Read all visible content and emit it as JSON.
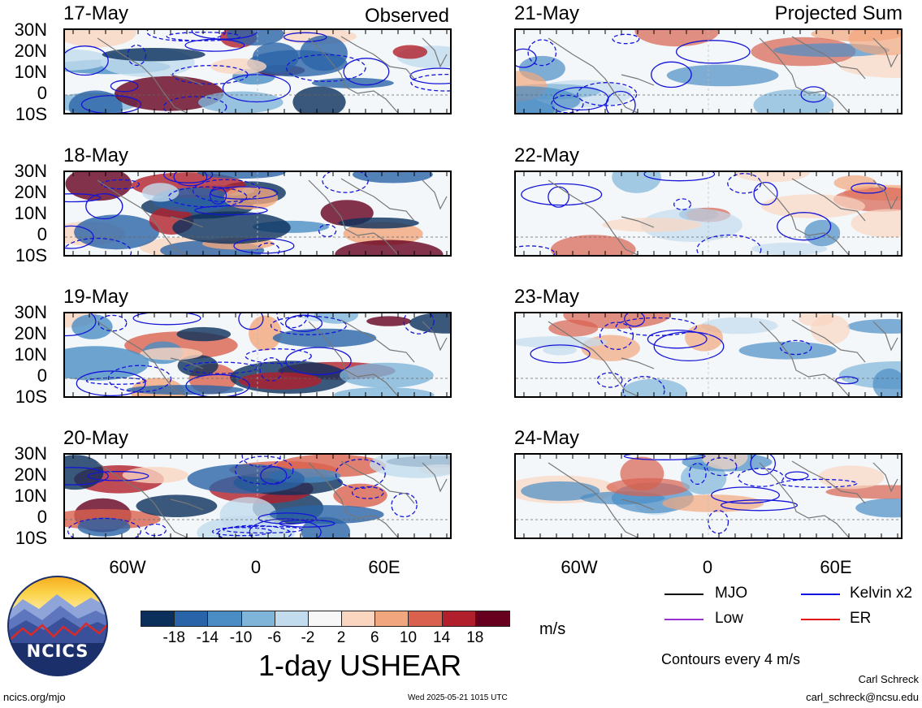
{
  "observed_label": "Observed",
  "projected_label": "Projected Sum",
  "observed_panels": [
    "17-May",
    "18-May",
    "19-May",
    "20-May"
  ],
  "projected_panels": [
    "21-May",
    "22-May",
    "23-May",
    "24-May"
  ],
  "lat_labels": [
    "30N",
    "20N",
    "10N",
    "0",
    "10S"
  ],
  "lon_labels": [
    "60W",
    "0",
    "60E"
  ],
  "colorbar": {
    "unit": "m/s",
    "ticks": [
      "-18",
      "-14",
      "-10",
      "-6",
      "-2",
      "2",
      "6",
      "10",
      "14",
      "18"
    ],
    "colors": [
      "#0b2f5b",
      "#2a64a8",
      "#4a8dc4",
      "#7fb5d9",
      "#c3dced",
      "#f7f7f7",
      "#fad6c1",
      "#f2a67d",
      "#d9614e",
      "#b21f2c",
      "#67001f"
    ]
  },
  "title": "1-day USHEAR",
  "legend": {
    "items": [
      {
        "label": "MJO",
        "color": "#000000"
      },
      {
        "label": "Kelvin x2",
        "color": "#1010e0"
      },
      {
        "label": "Low",
        "color": "#9b30d0"
      },
      {
        "label": "ER",
        "color": "#e01010"
      }
    ],
    "note": "Contours every 4 m/s"
  },
  "logo_text": "NCICS",
  "footer": {
    "left": "ncics.org/mjo",
    "center": "Wed 2025-05-21 1015 UTC",
    "author": "Carl Schreck",
    "email": "carl_schreck@ncsu.edu"
  }
}
